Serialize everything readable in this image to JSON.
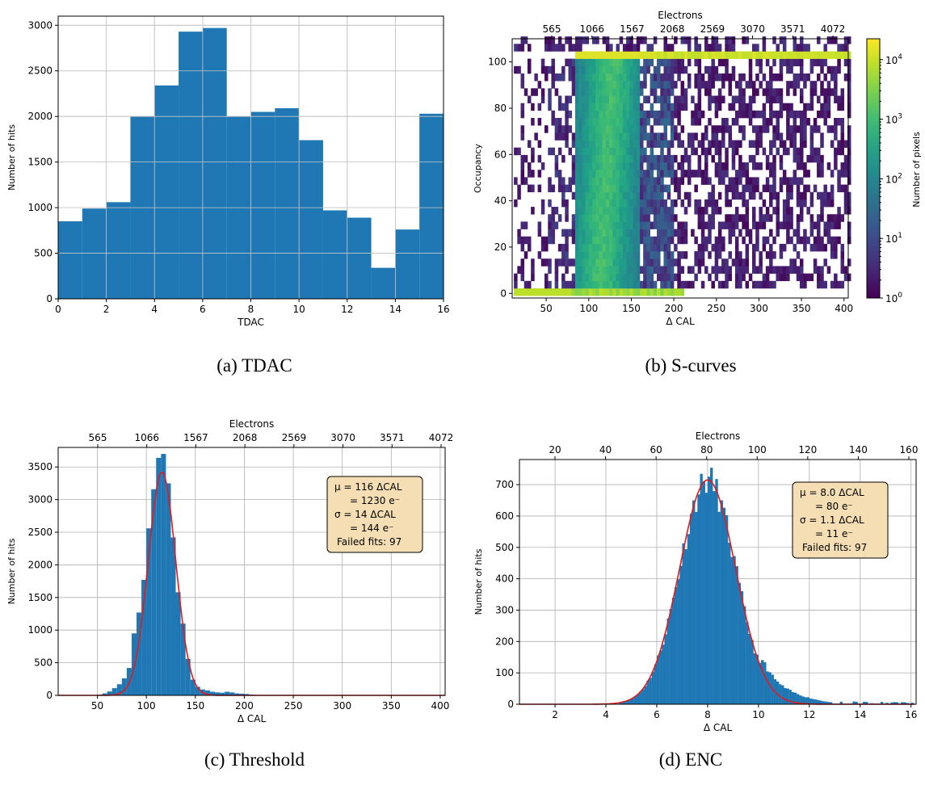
{
  "captions": {
    "a": "(a) TDAC",
    "b": "(b) S-curves",
    "c": "(c) Threshold",
    "d": "(d) ENC"
  },
  "chart_data": [
    {
      "id": "tdac",
      "type": "bar",
      "xlabel": "TDAC",
      "ylabel": "Number of hits",
      "xlim": [
        0,
        16
      ],
      "ylim": [
        0,
        3100
      ],
      "xticks": [
        0,
        2,
        4,
        6,
        8,
        10,
        12,
        14,
        16
      ],
      "yticks": [
        0,
        500,
        1000,
        1500,
        2000,
        2500,
        3000
      ],
      "grid": true,
      "bin_edges": [
        0,
        1,
        2,
        3,
        4,
        5,
        6,
        7,
        8,
        9,
        10,
        11,
        12,
        13,
        14,
        15,
        16
      ],
      "values": [
        850,
        990,
        1060,
        2000,
        2340,
        2930,
        2970,
        2000,
        2050,
        2090,
        1740,
        970,
        890,
        340,
        760,
        2030
      ],
      "color": "#1f77b4"
    },
    {
      "id": "scurves",
      "type": "heatmap",
      "xlabel": "Δ CAL",
      "ylabel": "Occupancy",
      "top_xlabel": "Electrons",
      "top_xticks": [
        "565",
        "1066",
        "1567",
        "2068",
        "2569",
        "3070",
        "3571",
        "4072"
      ],
      "xlim": [
        10,
        405
      ],
      "ylim": [
        -2,
        110
      ],
      "xticks": [
        50,
        100,
        150,
        200,
        250,
        300,
        350,
        400
      ],
      "yticks": [
        0,
        20,
        40,
        60,
        80,
        100
      ],
      "colorbar": {
        "label": "Number of pixels",
        "scale": "log",
        "ticks": [
          {
            "base": "10",
            "exp": "0"
          },
          {
            "base": "10",
            "exp": "1"
          },
          {
            "base": "10",
            "exp": "2"
          },
          {
            "base": "10",
            "exp": "3"
          },
          {
            "base": "10",
            "exp": "4"
          }
        ],
        "colormap": "viridis"
      },
      "transition_range": [
        75,
        200
      ],
      "transition_center": 116,
      "color_empty": "#ffffff"
    },
    {
      "id": "threshold",
      "type": "bar",
      "xlabel": "Δ CAL",
      "ylabel": "Number of hits",
      "top_xlabel": "Electrons",
      "top_xticks": [
        "565",
        "1066",
        "1567",
        "2068",
        "2569",
        "3070",
        "3571",
        "4072"
      ],
      "xlim": [
        10,
        405
      ],
      "ylim": [
        0,
        3800
      ],
      "xticks": [
        50,
        100,
        150,
        200,
        250,
        300,
        350,
        400
      ],
      "yticks": [
        0,
        500,
        1000,
        1500,
        2000,
        2500,
        3000,
        3500
      ],
      "grid": true,
      "bin_width": 5,
      "bin_starts": [
        50,
        55,
        60,
        65,
        70,
        75,
        80,
        85,
        90,
        95,
        100,
        105,
        110,
        115,
        120,
        125,
        130,
        135,
        140,
        145,
        150,
        155,
        160,
        165,
        170,
        175,
        180,
        185,
        190,
        195,
        200,
        205
      ],
      "values": [
        10,
        30,
        60,
        110,
        170,
        260,
        420,
        950,
        1270,
        1770,
        2560,
        3160,
        3640,
        3700,
        3250,
        2420,
        1580,
        1100,
        560,
        240,
        130,
        90,
        75,
        55,
        45,
        40,
        55,
        45,
        30,
        25,
        20,
        10
      ],
      "fit": {
        "type": "gaussian",
        "mu": 116,
        "sigma": 14,
        "amplitude": 3420,
        "color": "#e41a1c"
      },
      "annotation": [
        "μ = 116 ΔCAL",
        "= 1230 e⁻",
        "σ = 14 ΔCAL",
        "= 144 e⁻",
        "Failed fits: 97"
      ]
    },
    {
      "id": "enc",
      "type": "bar",
      "xlabel": "Δ CAL",
      "ylabel": "Number of hits",
      "top_xlabel": "Electrons",
      "top_xticks": [
        "20",
        "40",
        "60",
        "80",
        "100",
        "120",
        "140",
        "160"
      ],
      "xlim": [
        0.6,
        16.2
      ],
      "ylim": [
        0,
        780
      ],
      "xticks": [
        2,
        4,
        6,
        8,
        10,
        12,
        14,
        16
      ],
      "yticks": [
        0,
        100,
        200,
        300,
        400,
        500,
        600,
        700
      ],
      "grid": true,
      "bin_width": 0.1,
      "fit": {
        "type": "gaussian",
        "mu": 8.0,
        "sigma": 1.1,
        "amplitude": 715,
        "color": "#e41a1c"
      },
      "annotation": [
        "μ = 8.0 ΔCAL",
        "= 80 e⁻",
        "σ = 1.1 ΔCAL",
        "= 11 e⁻",
        "Failed fits: 97"
      ]
    }
  ]
}
